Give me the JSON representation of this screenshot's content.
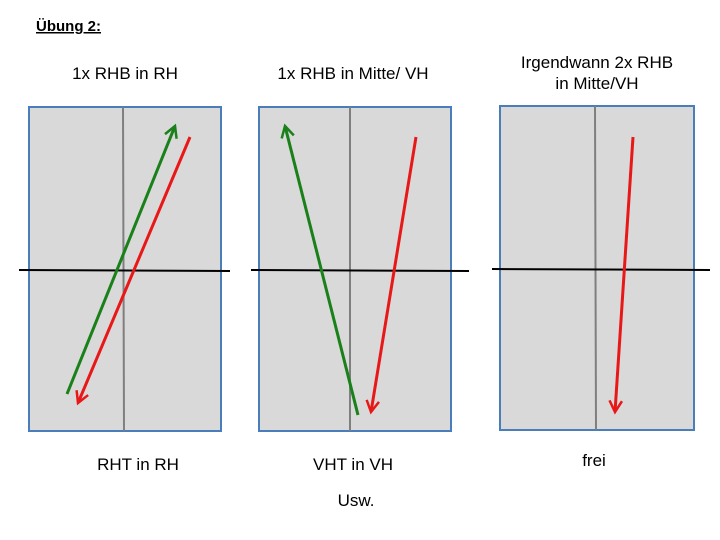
{
  "title": "Übung 2:",
  "panels": [
    {
      "top_label": [
        "1x RHB in RH"
      ],
      "bottom_label": "RHT in RH"
    },
    {
      "top_label": [
        "1x RHB in Mitte/ VH"
      ],
      "bottom_label": "VHT in VH"
    },
    {
      "top_label": [
        "Irgendwann 2x RHB",
        "in Mitte/VH"
      ],
      "bottom_label": "frei"
    }
  ],
  "footer": "Usw."
}
